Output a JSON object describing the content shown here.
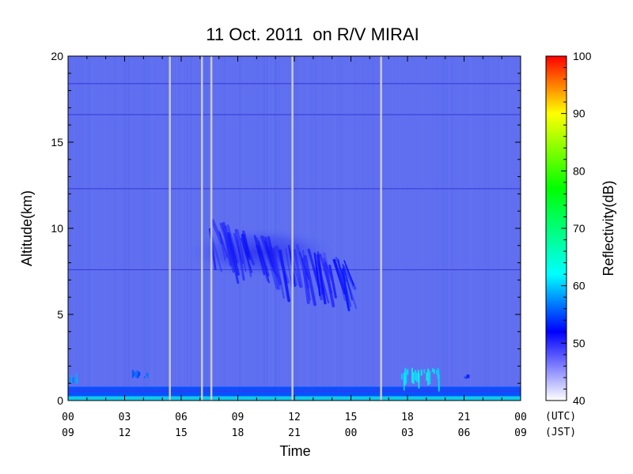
{
  "chart_data": {
    "type": "heatmap",
    "title": "11 Oct. 2011  on R/V MIRAI",
    "xlabel": "Time",
    "ylabel": "Altitude(km)",
    "colorbar_label": "Reflectivity(dB)",
    "xlim": [
      0,
      24
    ],
    "ylim": [
      0,
      20
    ],
    "x_ticks_utc": [
      "00",
      "03",
      "06",
      "09",
      "12",
      "15",
      "18",
      "21",
      "00"
    ],
    "x_ticks_jst": [
      "09",
      "12",
      "15",
      "18",
      "21",
      "00",
      "03",
      "06",
      "09"
    ],
    "x_tick_hours": [
      0,
      3,
      6,
      9,
      12,
      15,
      18,
      21,
      24
    ],
    "y_ticks": [
      0,
      5,
      10,
      15,
      20
    ],
    "timezone_labels": [
      "(UTC)",
      "(JST)"
    ],
    "colorbar_range": [
      40,
      100
    ],
    "colorbar_ticks": [
      40,
      50,
      60,
      70,
      80,
      90,
      100
    ],
    "colorscale": [
      {
        "value": 40,
        "color": "#ffffff"
      },
      {
        "value": 46,
        "color": "#7f7fff"
      },
      {
        "value": 52,
        "color": "#0000ff"
      },
      {
        "value": 62,
        "color": "#00ffff"
      },
      {
        "value": 77,
        "color": "#00ff00"
      },
      {
        "value": 90,
        "color": "#ffff00"
      },
      {
        "value": 100,
        "color": "#ff0000"
      }
    ],
    "background_color": "#5f6ff0",
    "data_gaps_utc_hours": [
      5.4,
      7.1,
      7.6,
      11.9,
      16.6
    ],
    "horizontal_lines_km": [
      18.4,
      16.6,
      12.3,
      7.6
    ],
    "echoes": [
      {
        "t0": 6.3,
        "t1": 15.2,
        "z_top": 11.0,
        "z_bottom": 5.5,
        "dB": 50
      },
      {
        "t0": 0.0,
        "t1": 24.0,
        "z_top": 0.8,
        "z_bottom": 0.0,
        "dB": 55
      },
      {
        "t0": 0.1,
        "t1": 0.6,
        "z_top": 1.6,
        "z_bottom": 1.0,
        "dB": 56
      },
      {
        "t0": 3.4,
        "t1": 4.3,
        "z_top": 1.8,
        "z_bottom": 1.3,
        "dB": 53
      },
      {
        "t0": 17.7,
        "t1": 19.8,
        "z_top": 1.9,
        "z_bottom": 0.0,
        "dB": 60
      },
      {
        "t0": 21.0,
        "t1": 21.4,
        "z_top": 1.6,
        "z_bottom": 1.3,
        "dB": 52
      }
    ]
  }
}
